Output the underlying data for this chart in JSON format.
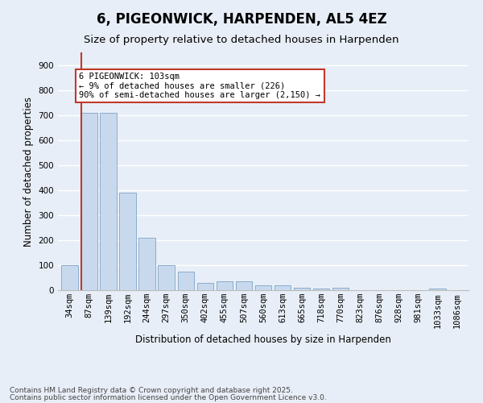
{
  "title": "6, PIGEONWICK, HARPENDEN, AL5 4EZ",
  "subtitle": "Size of property relative to detached houses in Harpenden",
  "xlabel": "Distribution of detached houses by size in Harpenden",
  "ylabel": "Number of detached properties",
  "categories": [
    "34sqm",
    "87sqm",
    "139sqm",
    "192sqm",
    "244sqm",
    "297sqm",
    "350sqm",
    "402sqm",
    "455sqm",
    "507sqm",
    "560sqm",
    "613sqm",
    "665sqm",
    "718sqm",
    "770sqm",
    "823sqm",
    "876sqm",
    "928sqm",
    "981sqm",
    "1033sqm",
    "1086sqm"
  ],
  "values": [
    100,
    710,
    710,
    390,
    210,
    100,
    75,
    30,
    35,
    35,
    20,
    20,
    10,
    5,
    10,
    0,
    0,
    0,
    0,
    5,
    0
  ],
  "bar_color": "#c9d9ed",
  "bar_edge_color": "#7ba4c7",
  "vline_x": 1,
  "vline_color": "#c0392b",
  "annotation_text": "6 PIGEONWICK: 103sqm\n← 9% of detached houses are smaller (226)\n90% of semi-detached houses are larger (2,150) →",
  "annotation_box_color": "#ffffff",
  "annotation_box_edge_color": "#c0392b",
  "ylim": [
    0,
    950
  ],
  "yticks": [
    0,
    100,
    200,
    300,
    400,
    500,
    600,
    700,
    800,
    900
  ],
  "footer_line1": "Contains HM Land Registry data © Crown copyright and database right 2025.",
  "footer_line2": "Contains public sector information licensed under the Open Government Licence v3.0.",
  "bg_color": "#e8eef7",
  "grid_color": "#ffffff",
  "title_fontsize": 12,
  "subtitle_fontsize": 9.5,
  "tick_fontsize": 7.5,
  "label_fontsize": 8.5,
  "footer_fontsize": 6.5,
  "annotation_fontsize": 7.5
}
